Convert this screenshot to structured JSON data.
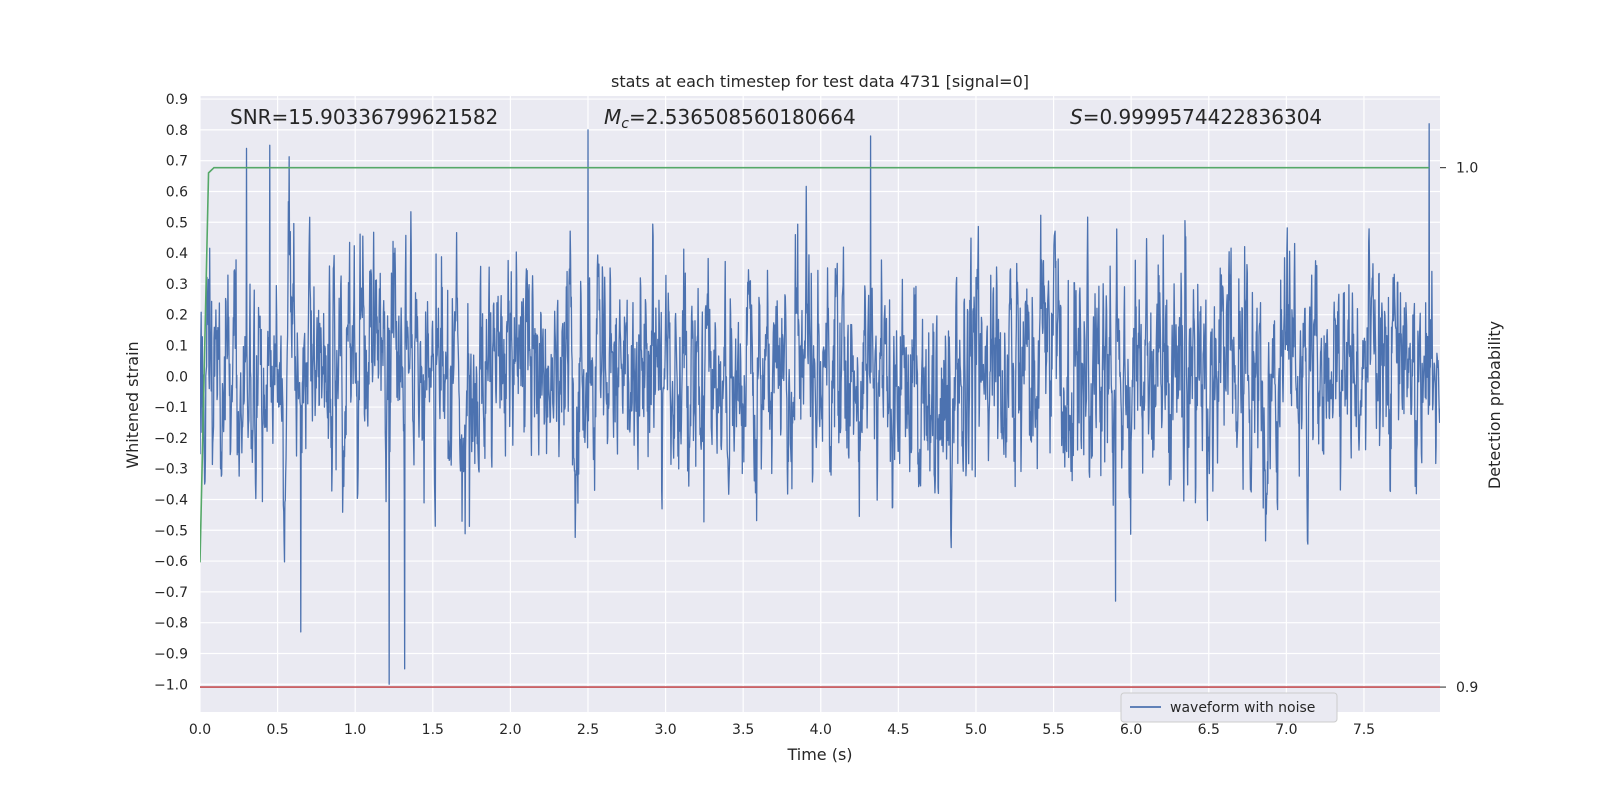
{
  "chart_data": {
    "type": "line",
    "title": "stats at each timestep for test data 4731 [signal=0]",
    "xlabel": "Time (s)",
    "ylabel": "Whitened strain",
    "y2label": "Detection probability",
    "xlim": [
      0.0,
      7.99
    ],
    "ylim": [
      -1.09,
      0.91
    ],
    "y2lim": [
      0.8952,
      1.0138
    ],
    "x_ticks": [
      "0.0",
      "0.5",
      "1.0",
      "1.5",
      "2.0",
      "2.5",
      "3.0",
      "3.5",
      "4.0",
      "4.5",
      "5.0",
      "5.5",
      "6.0",
      "6.5",
      "7.0",
      "7.5"
    ],
    "y_ticks": [
      "0.9",
      "0.8",
      "0.7",
      "0.6",
      "0.5",
      "0.4",
      "0.3",
      "0.2",
      "0.1",
      "0.0",
      "-0.1",
      "-0.2",
      "-0.3",
      "-0.4",
      "-0.5",
      "-0.6",
      "-0.7",
      "-0.8",
      "-0.9",
      "-1.0"
    ],
    "y2_ticks": [
      "1.0",
      "0.9"
    ],
    "grid": true,
    "legend_position": "bottom-right",
    "annotations": {
      "snr": "SNR=15.90336799621582",
      "mc": "=2.536508560180664",
      "mc_symbol": "M",
      "mc_sub": "c",
      "s": "=0.9999574422836304",
      "s_symbol": "S"
    },
    "series": [
      {
        "name": "waveform with noise",
        "axis": "left",
        "color": "#4c72b0",
        "description": "whitened strain noise, approx. range -1.0 to 0.82",
        "spikes": [
          {
            "x": 0.3,
            "y": 0.74
          },
          {
            "x": 0.45,
            "y": 0.75
          },
          {
            "x": 1.32,
            "y": -0.95
          },
          {
            "x": 2.5,
            "y": 0.8
          },
          {
            "x": 4.32,
            "y": 0.78
          },
          {
            "x": 7.92,
            "y": 0.82
          },
          {
            "x": 5.9,
            "y": -0.73
          },
          {
            "x": 0.65,
            "y": -0.83
          },
          {
            "x": 1.22,
            "y": -1.0
          }
        ]
      },
      {
        "axis": "right",
        "color": "#55a868",
        "x": [
          0.0,
          0.055,
          0.09,
          7.92
        ],
        "y": [
          0.924,
          0.999,
          1.0,
          1.0
        ]
      },
      {
        "axis": "right",
        "color": "#c44e52",
        "x": [
          0.0,
          7.99
        ],
        "y": [
          0.9,
          0.9
        ]
      }
    ]
  },
  "colors": {
    "plot_background": "#eaeaf2",
    "grid": "#ffffff",
    "waveform": "#4c72b0",
    "probability": "#55a868",
    "threshold": "#c44e52"
  }
}
